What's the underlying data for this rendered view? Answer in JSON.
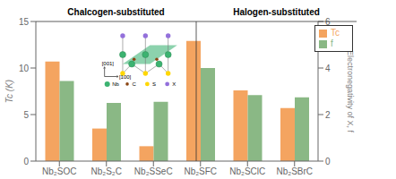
{
  "chart_data": {
    "type": "bar",
    "categories": [
      "Nb₂SOC",
      "Nb₂S₂C",
      "Nb₂SSeC",
      "Nb₂SFC",
      "Nb₂SClC",
      "Nb₂SBrC"
    ],
    "series": [
      {
        "name": "Tc",
        "color": "#F4A460",
        "values": [
          10.7,
          3.5,
          1.6,
          12.9,
          7.6,
          5.7
        ]
      },
      {
        "name": "f",
        "color": "#8AB885",
        "values": [
          3.44,
          2.5,
          2.55,
          4.0,
          2.84,
          2.74
        ],
        "axis": "y2"
      }
    ],
    "ylabel": "Tc (K)",
    "y2label": "Electronegativity of X, f",
    "ylim": [
      0,
      15
    ],
    "yticks": [
      0,
      5,
      10,
      15
    ],
    "y2lim": [
      0,
      6
    ],
    "y2ticks": [
      0,
      2,
      4,
      6
    ],
    "annotations": [
      "Chalcogen-substituted",
      "Halogen-substituted",
      "[001]",
      "[100]",
      "Nb",
      "C",
      "S",
      "X"
    ],
    "legend": "upper right",
    "grid": false
  }
}
